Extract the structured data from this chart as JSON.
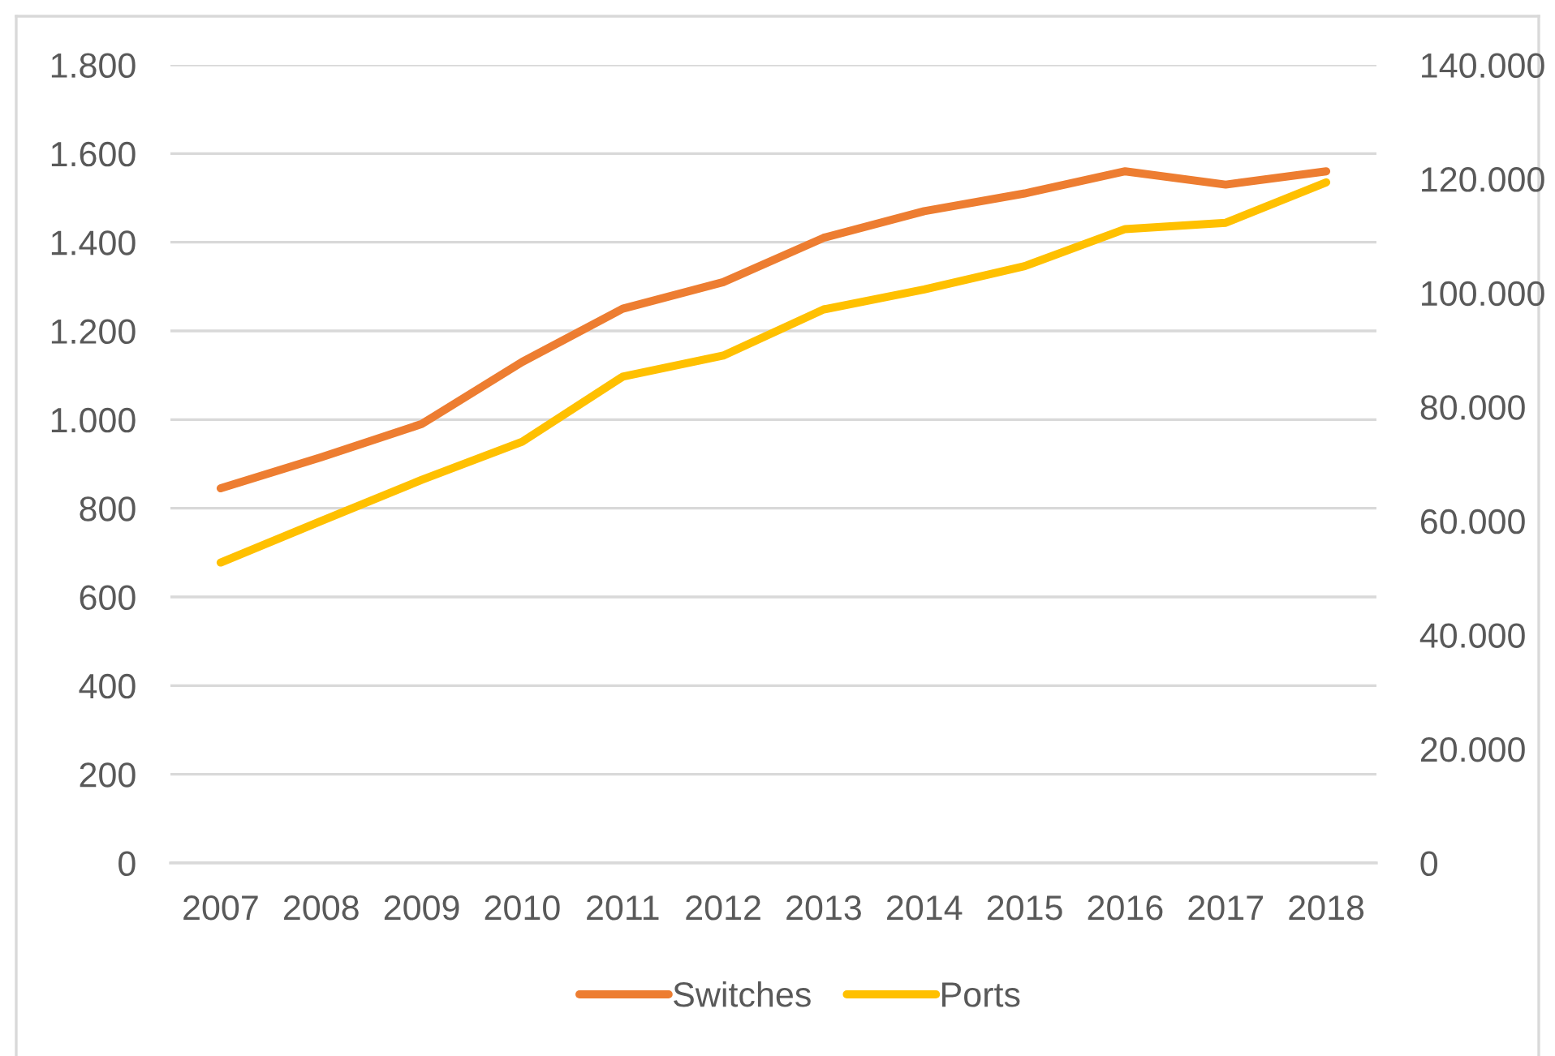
{
  "chart_data": {
    "type": "line",
    "categories": [
      "2007",
      "2008",
      "2009",
      "2010",
      "2011",
      "2012",
      "2013",
      "2014",
      "2015",
      "2016",
      "2017",
      "2018"
    ],
    "series": [
      {
        "name": "Switches",
        "color": "#ed7d31",
        "values": [
          845,
          915,
          990,
          1130,
          1250,
          1310,
          1410,
          1470,
          1510,
          1560,
          1530,
          1560
        ]
      },
      {
        "name": "Ports",
        "color": "#ffc000",
        "axis": "y2",
        "values": [
          52700,
          60000,
          67200,
          73900,
          85300,
          89000,
          97100,
          100600,
          104700,
          111200,
          112300,
          119400
        ]
      }
    ],
    "ylim": [
      0,
      1800
    ],
    "yticks": [
      0,
      200,
      400,
      600,
      800,
      {
        "value": 1000,
        "label": "1.000"
      },
      {
        "value": 1200,
        "label": "1.200"
      },
      {
        "value": 1400,
        "label": "1.400"
      },
      {
        "value": 1600,
        "label": "1.600"
      },
      {
        "value": 1800,
        "label": "1.800"
      }
    ],
    "y2lim": [
      0,
      140000
    ],
    "y2ticks": [
      0,
      {
        "value": 20000,
        "label": "20.000"
      },
      {
        "value": 40000,
        "label": "40.000"
      },
      {
        "value": 60000,
        "label": "60.000"
      },
      {
        "value": 80000,
        "label": "80.000"
      },
      {
        "value": 100000,
        "label": "100.000"
      },
      {
        "value": 120000,
        "label": "120.000"
      },
      {
        "value": 140000,
        "label": "140.000"
      }
    ],
    "grid": "y",
    "legend": "bottom",
    "marker": "none",
    "line_style": "solid"
  }
}
